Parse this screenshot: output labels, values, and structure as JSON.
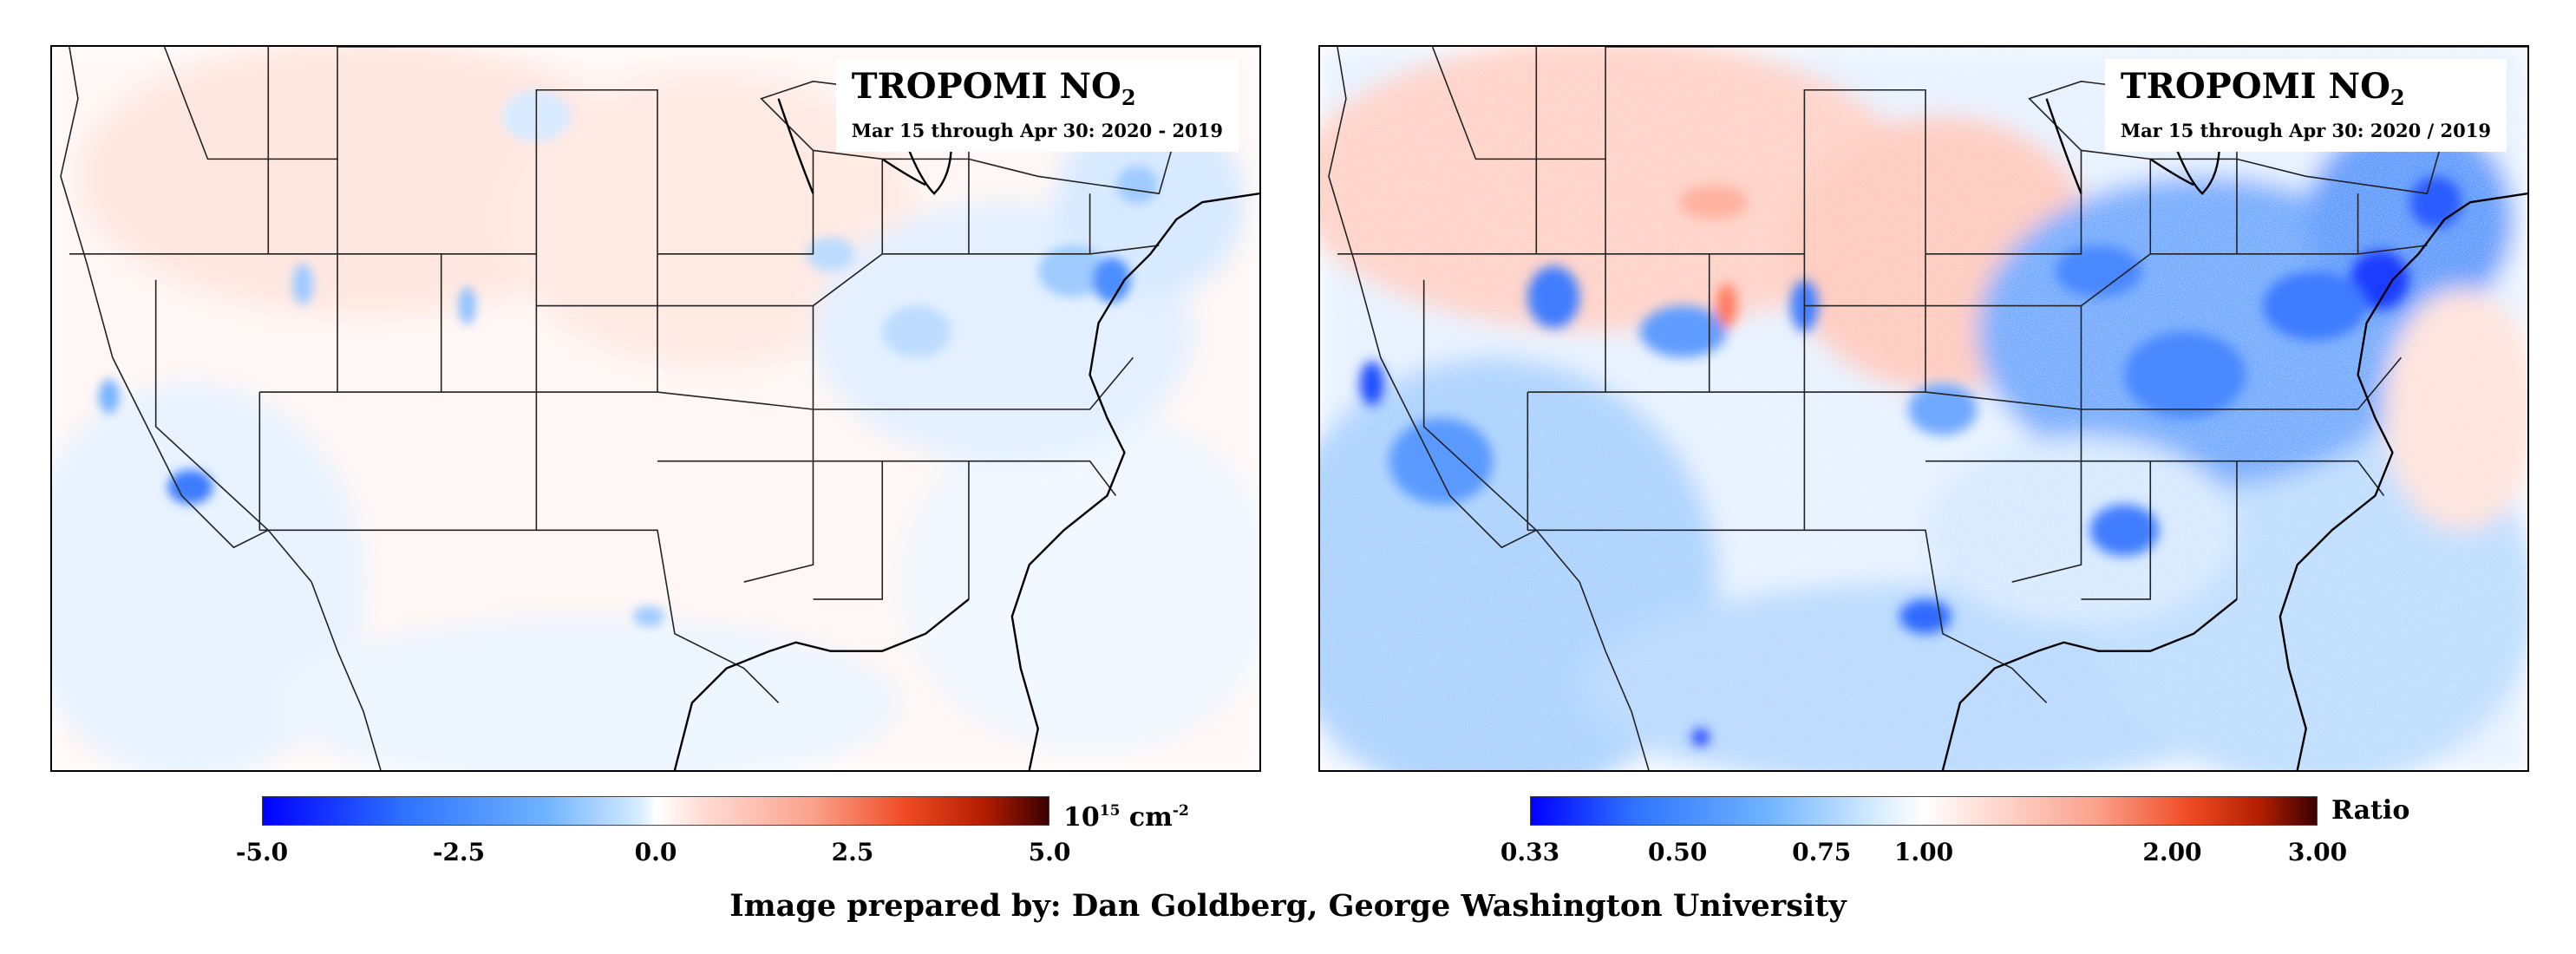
{
  "left_map": {
    "title": "TROPOMI NO",
    "title_subscript": "2",
    "subtitle": "Mar 15 through Apr 30: 2020 - 2019",
    "colorbar": {
      "ticks": [
        "-5.0",
        "-2.5",
        "0.0",
        "2.5",
        "5.0"
      ],
      "tick_values": [
        -5.0,
        -2.5,
        0.0,
        2.5,
        5.0
      ],
      "range": [
        -5.0,
        5.0
      ],
      "unit_base": "10",
      "unit_exp": "15",
      "unit_text": " cm",
      "unit_exp2": "-2"
    }
  },
  "right_map": {
    "title": "TROPOMI NO",
    "title_subscript": "2",
    "subtitle": "Mar 15 through Apr 30: 2020 / 2019",
    "colorbar": {
      "ticks": [
        "0.33",
        "0.50",
        "0.75",
        "1.00",
        "2.00",
        "3.00"
      ],
      "tick_values": [
        0.33,
        0.5,
        0.75,
        1.0,
        2.0,
        3.0
      ],
      "range": [
        0.33,
        3.0
      ],
      "scale": "log",
      "label": "Ratio"
    }
  },
  "colors": {
    "negative": "#0000ff",
    "neutral": "#ffffff",
    "positive": "#b01d00",
    "extreme_positive": "#3a0000"
  },
  "credit": "Image prepared by: Dan Goldberg, George Washington University"
}
